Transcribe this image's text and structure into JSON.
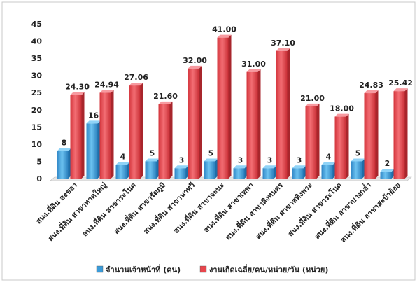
{
  "chart_data": {
    "type": "bar",
    "title": "",
    "xlabel": "",
    "ylabel": "",
    "ylim": [
      0,
      45
    ],
    "yticks": [
      0,
      5,
      10,
      15,
      20,
      25,
      30,
      35,
      40,
      45
    ],
    "grid": false,
    "legend_position": "bottom",
    "categories": [
      "สนง.ที่ดิน สงขลา",
      "สนง.ที่ดิน สาขาหาดใหญ่",
      "สนง.ที่ดิน สาขาระโนด",
      "สนง.ที่ดิน สาขารัตภูมิ",
      "สนง.ที่ดิน สาขานาทวี",
      "สนง.ที่ดิน สาขาจะนะ",
      "สนง.ที่ดิน สาขาเทพา",
      "สนง.ที่ดิน สาขาสิงหนคร",
      "สนง.ที่ดิน สาขาสทิงพระ",
      "สนง.ที่ดิน สาขาระโนด",
      "สนง.ที่ดิน สาขาบางกล่ำ",
      "สนง.ที่ดิน สาขาสะบ้าย้อย"
    ],
    "series": [
      {
        "name": "จำนวนเจ้าหน้าที่ (คน)",
        "color": "#3a9bd9",
        "values": [
          8,
          16,
          4,
          5,
          3,
          5,
          3,
          3,
          3,
          4,
          5,
          2
        ],
        "labels": [
          "8",
          "16",
          "4",
          "5",
          "3",
          "5",
          "3",
          "3",
          "3",
          "4",
          "5",
          "2"
        ]
      },
      {
        "name": "งานเกิดเฉลี่ย/คน/หน่วย/วัน (หน่วย)",
        "color": "#e8454c",
        "values": [
          24.3,
          24.94,
          27.06,
          21.6,
          32.0,
          41.0,
          31.0,
          37.1,
          21.0,
          18.0,
          24.83,
          25.42
        ],
        "labels": [
          "24.30",
          "24.94",
          "27.06",
          "21.60",
          "32.00",
          "41.00",
          "31.00",
          "37.10",
          "21.00",
          "18.00",
          "24.83",
          "25.42"
        ]
      }
    ]
  }
}
